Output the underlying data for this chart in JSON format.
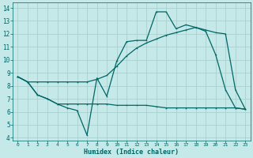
{
  "xlabel": "Humidex (Indice chaleur)",
  "bg_color": "#c5e8e8",
  "grid_color": "#aad0d0",
  "line_color": "#006666",
  "xlim": [
    0,
    23
  ],
  "ylim": [
    4,
    14
  ],
  "yticks": [
    4,
    5,
    6,
    7,
    8,
    9,
    10,
    11,
    12,
    13,
    14
  ],
  "xticks": [
    0,
    1,
    2,
    3,
    4,
    5,
    6,
    7,
    8,
    9,
    10,
    11,
    12,
    13,
    14,
    15,
    16,
    17,
    18,
    19,
    20,
    21,
    22,
    23
  ],
  "line1_x": [
    0,
    1,
    2,
    3,
    4,
    5,
    6,
    7,
    8,
    9,
    10,
    11,
    12,
    13,
    14,
    15,
    16,
    17,
    18,
    19,
    20,
    21,
    22,
    23
  ],
  "line1_y": [
    8.7,
    8.3,
    7.3,
    7.0,
    6.6,
    6.3,
    6.1,
    4.2,
    8.6,
    7.2,
    9.9,
    11.4,
    11.5,
    11.5,
    13.7,
    13.7,
    12.4,
    12.7,
    12.5,
    12.2,
    10.4,
    7.7,
    6.3,
    6.2
  ],
  "line2_x": [
    0,
    1,
    2,
    3,
    4,
    5,
    6,
    7,
    8,
    9,
    10,
    11,
    12,
    13,
    14,
    15,
    16,
    17,
    18,
    19,
    20,
    21,
    22,
    23
  ],
  "line2_y": [
    8.7,
    8.3,
    8.3,
    8.3,
    8.3,
    8.3,
    8.3,
    8.3,
    8.5,
    8.8,
    9.5,
    10.3,
    10.9,
    11.3,
    11.6,
    11.9,
    12.1,
    12.3,
    12.5,
    12.3,
    12.1,
    12.0,
    7.7,
    6.2
  ],
  "line3_x": [
    0,
    1,
    2,
    3,
    4,
    5,
    6,
    7,
    8,
    9,
    10,
    11,
    12,
    13,
    14,
    15,
    16,
    17,
    18,
    19,
    20,
    21,
    22,
    23
  ],
  "line3_y": [
    8.7,
    8.3,
    7.3,
    7.0,
    6.6,
    6.6,
    6.6,
    6.6,
    6.6,
    6.6,
    6.5,
    6.5,
    6.5,
    6.5,
    6.4,
    6.3,
    6.3,
    6.3,
    6.3,
    6.3,
    6.3,
    6.3,
    6.3,
    6.2
  ]
}
